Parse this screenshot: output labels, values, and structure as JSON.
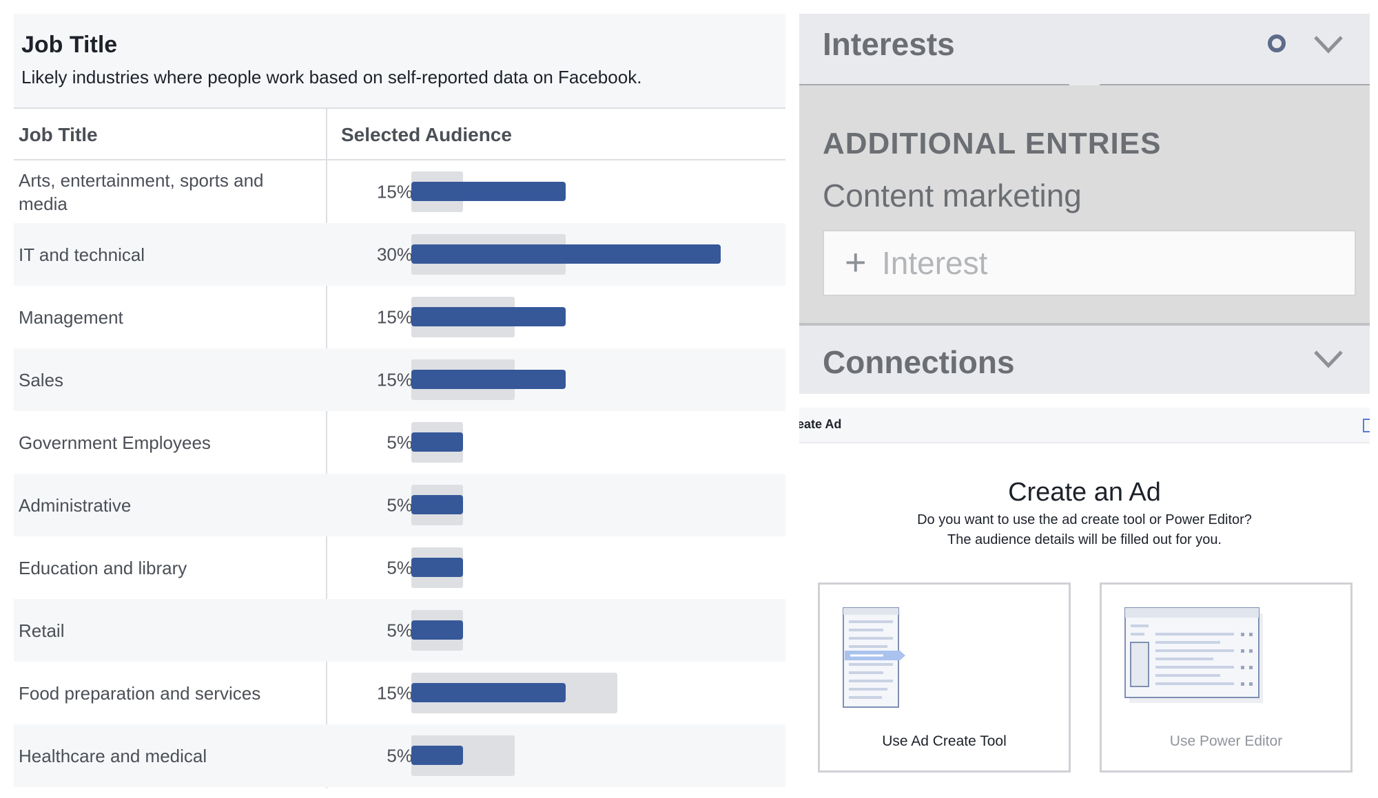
{
  "job_panel": {
    "title": "Job Title",
    "subtitle": "Likely industries where people work based on self-reported data on Facebook.",
    "columns": [
      "Job Title",
      "Selected Audience"
    ],
    "rows": [
      {
        "label": "Arts, entertainment, sports and media",
        "percent": "15%",
        "value": 15,
        "benchmark": 5
      },
      {
        "label": "IT and technical",
        "percent": "30%",
        "value": 30,
        "benchmark": 15
      },
      {
        "label": "Management",
        "percent": "15%",
        "value": 15,
        "benchmark": 10
      },
      {
        "label": "Sales",
        "percent": "15%",
        "value": 15,
        "benchmark": 10
      },
      {
        "label": "Government Employees",
        "percent": "5%",
        "value": 5,
        "benchmark": 5
      },
      {
        "label": "Administrative",
        "percent": "5%",
        "value": 5,
        "benchmark": 5
      },
      {
        "label": "Education and library",
        "percent": "5%",
        "value": 5,
        "benchmark": 5
      },
      {
        "label": "Retail",
        "percent": "5%",
        "value": 5,
        "benchmark": 5
      },
      {
        "label": "Food preparation and services",
        "percent": "15%",
        "value": 15,
        "benchmark": 20
      },
      {
        "label": "Healthcare and medical",
        "percent": "5%",
        "value": 5,
        "benchmark": 10
      }
    ],
    "bar_color": "#365899",
    "benchmark_color": "#dddfe2"
  },
  "interests_panel": {
    "title": "Interests",
    "icons": [
      "gear-icon",
      "chevron-down-icon"
    ],
    "additional_entries_label": "ADDITIONAL ENTRIES",
    "entry": "Content marketing",
    "input_placeholder": "Interest",
    "connections_label": "Connections"
  },
  "create_ad_panel": {
    "tab_label": "reate Ad",
    "title": "Create an Ad",
    "subtitle_line1": "Do you want to use the ad create tool or Power Editor?",
    "subtitle_line2": "The audience details will be filled out for you.",
    "options": [
      {
        "label": "Use Ad Create Tool"
      },
      {
        "label": "Use Power Editor"
      }
    ]
  }
}
